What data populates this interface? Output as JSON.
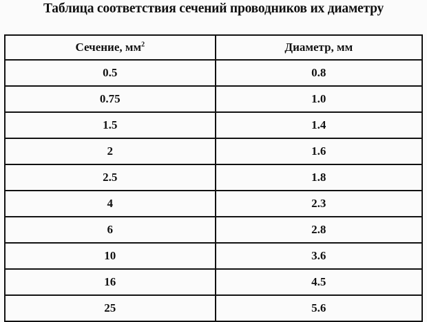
{
  "title": "Таблица соответствия сечений проводников их диаметру",
  "table": {
    "headers": {
      "section": "Сечение, мм",
      "section_sup": "2",
      "diameter": "Диаметр, мм"
    },
    "rows": [
      {
        "section": "0.5",
        "diameter": "0.8"
      },
      {
        "section": "0.75",
        "diameter": "1.0"
      },
      {
        "section": "1.5",
        "diameter": "1.4"
      },
      {
        "section": "2",
        "diameter": "1.6"
      },
      {
        "section": "2.5",
        "diameter": "1.8"
      },
      {
        "section": "4",
        "diameter": "2.3"
      },
      {
        "section": "6",
        "diameter": "2.8"
      },
      {
        "section": "10",
        "diameter": "3.6"
      },
      {
        "section": "16",
        "diameter": "4.5"
      },
      {
        "section": "25",
        "diameter": "5.6"
      }
    ]
  }
}
